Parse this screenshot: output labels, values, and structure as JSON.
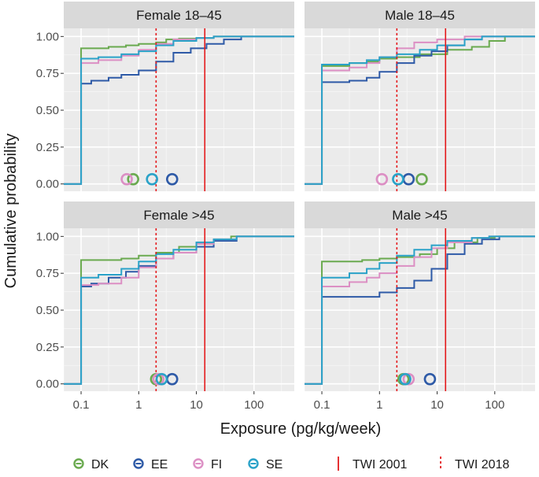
{
  "chart_data": {
    "type": "line",
    "title": "",
    "xlabel": "Exposure (pg/kg/week)",
    "ylabel": "Cumulative probability",
    "xscale": "log10",
    "xlim": [
      0.05,
      500
    ],
    "ylim": [
      0,
      1.0
    ],
    "x_ticks": [
      0.1,
      1,
      10,
      100
    ],
    "x_tick_labels": [
      "0.1",
      "1",
      "10",
      "100"
    ],
    "y_ticks": [
      0,
      0.25,
      0.5,
      0.75,
      1.0
    ],
    "y_tick_labels": [
      "0.00",
      "0.25",
      "0.50",
      "0.75",
      "1.00"
    ],
    "reference_lines": [
      {
        "name": "TWI 2001",
        "x": 14,
        "style": "solid",
        "color": "#e41a1c"
      },
      {
        "name": "TWI 2018",
        "x": 2,
        "style": "dotted",
        "color": "#e41a1c"
      }
    ],
    "series_colors": {
      "DK": "#6aaa4f",
      "EE": "#2e5aa7",
      "FI": "#dc8fc4",
      "SE": "#2aa2c8"
    },
    "legend": {
      "position": "bottom",
      "items": [
        {
          "label": "DK",
          "key": "DK"
        },
        {
          "label": "EE",
          "key": "EE"
        },
        {
          "label": "FI",
          "key": "FI"
        },
        {
          "label": "SE",
          "key": "SE"
        }
      ],
      "line_items": [
        {
          "label": "TWI 2001",
          "style": "solid"
        },
        {
          "label": "TWI 2018",
          "style": "dotted"
        }
      ]
    },
    "panels": [
      {
        "title": "Female 18–45",
        "series": [
          {
            "name": "DK",
            "points": [
              [
                0.04,
                0
              ],
              [
                0.095,
                0
              ],
              [
                0.1,
                0.92
              ],
              [
                0.3,
                0.93
              ],
              [
                0.6,
                0.94
              ],
              [
                1,
                0.95
              ],
              [
                2,
                0.96
              ],
              [
                3,
                0.98
              ],
              [
                5,
                0.985
              ],
              [
                10,
                0.99
              ],
              [
                20,
                1.0
              ],
              [
                500,
                1.0
              ]
            ]
          },
          {
            "name": "EE",
            "points": [
              [
                0.04,
                0
              ],
              [
                0.095,
                0
              ],
              [
                0.1,
                0.68
              ],
              [
                0.15,
                0.7
              ],
              [
                0.3,
                0.72
              ],
              [
                0.5,
                0.74
              ],
              [
                1,
                0.77
              ],
              [
                2,
                0.83
              ],
              [
                4,
                0.89
              ],
              [
                8,
                0.92
              ],
              [
                15,
                0.95
              ],
              [
                30,
                0.98
              ],
              [
                60,
                1.0
              ],
              [
                500,
                1.0
              ]
            ]
          },
          {
            "name": "FI",
            "points": [
              [
                0.04,
                0
              ],
              [
                0.095,
                0
              ],
              [
                0.1,
                0.82
              ],
              [
                0.2,
                0.84
              ],
              [
                0.5,
                0.87
              ],
              [
                1,
                0.91
              ],
              [
                2,
                0.95
              ],
              [
                4,
                0.98
              ],
              [
                10,
                0.99
              ],
              [
                20,
                1.0
              ],
              [
                500,
                1.0
              ]
            ]
          },
          {
            "name": "SE",
            "points": [
              [
                0.04,
                0
              ],
              [
                0.095,
                0
              ],
              [
                0.1,
                0.85
              ],
              [
                0.2,
                0.86
              ],
              [
                0.5,
                0.88
              ],
              [
                1,
                0.9
              ],
              [
                2,
                0.94
              ],
              [
                4,
                0.97
              ],
              [
                10,
                0.99
              ],
              [
                20,
                1.0
              ],
              [
                500,
                1.0
              ]
            ]
          }
        ],
        "medians": {
          "DK": 0.8,
          "EE": 3.8,
          "FI": 0.62,
          "SE": 1.7
        }
      },
      {
        "title": "Male 18–45",
        "series": [
          {
            "name": "DK",
            "points": [
              [
                0.04,
                0
              ],
              [
                0.095,
                0
              ],
              [
                0.1,
                0.8
              ],
              [
                0.3,
                0.82
              ],
              [
                0.6,
                0.83
              ],
              [
                1,
                0.85
              ],
              [
                2,
                0.86
              ],
              [
                5,
                0.88
              ],
              [
                15,
                0.91
              ],
              [
                40,
                0.93
              ],
              [
                80,
                0.97
              ],
              [
                150,
                1.0
              ],
              [
                500,
                1.0
              ]
            ]
          },
          {
            "name": "EE",
            "points": [
              [
                0.04,
                0
              ],
              [
                0.095,
                0
              ],
              [
                0.1,
                0.69
              ],
              [
                0.3,
                0.7
              ],
              [
                0.6,
                0.72
              ],
              [
                1,
                0.76
              ],
              [
                2,
                0.82
              ],
              [
                4,
                0.87
              ],
              [
                8,
                0.9
              ],
              [
                15,
                0.94
              ],
              [
                30,
                0.98
              ],
              [
                60,
                1.0
              ],
              [
                500,
                1.0
              ]
            ]
          },
          {
            "name": "FI",
            "points": [
              [
                0.04,
                0
              ],
              [
                0.095,
                0
              ],
              [
                0.1,
                0.77
              ],
              [
                0.3,
                0.79
              ],
              [
                0.6,
                0.82
              ],
              [
                1,
                0.86
              ],
              [
                2,
                0.92
              ],
              [
                4,
                0.96
              ],
              [
                10,
                0.98
              ],
              [
                30,
                1.0
              ],
              [
                500,
                1.0
              ]
            ]
          },
          {
            "name": "SE",
            "points": [
              [
                0.04,
                0
              ],
              [
                0.095,
                0
              ],
              [
                0.1,
                0.81
              ],
              [
                0.3,
                0.82
              ],
              [
                0.6,
                0.84
              ],
              [
                1,
                0.86
              ],
              [
                2,
                0.88
              ],
              [
                5,
                0.91
              ],
              [
                10,
                0.94
              ],
              [
                30,
                0.98
              ],
              [
                60,
                1.0
              ],
              [
                500,
                1.0
              ]
            ]
          }
        ],
        "medians": {
          "DK": 5.4,
          "EE": 3.2,
          "FI": 1.1,
          "SE": 2.1
        }
      },
      {
        "title": "Female >45",
        "series": [
          {
            "name": "DK",
            "points": [
              [
                0.04,
                0
              ],
              [
                0.095,
                0
              ],
              [
                0.1,
                0.84
              ],
              [
                0.5,
                0.85
              ],
              [
                1,
                0.87
              ],
              [
                2,
                0.89
              ],
              [
                5,
                0.93
              ],
              [
                10,
                0.95
              ],
              [
                20,
                0.98
              ],
              [
                40,
                1.0
              ],
              [
                500,
                1.0
              ]
            ]
          },
          {
            "name": "EE",
            "points": [
              [
                0.04,
                0
              ],
              [
                0.095,
                0
              ],
              [
                0.1,
                0.66
              ],
              [
                0.15,
                0.68
              ],
              [
                0.3,
                0.72
              ],
              [
                0.6,
                0.76
              ],
              [
                1,
                0.8
              ],
              [
                2,
                0.85
              ],
              [
                4,
                0.89
              ],
              [
                10,
                0.93
              ],
              [
                20,
                0.97
              ],
              [
                50,
                1.0
              ],
              [
                500,
                1.0
              ]
            ]
          },
          {
            "name": "FI",
            "points": [
              [
                0.04,
                0
              ],
              [
                0.095,
                0
              ],
              [
                0.1,
                0.67
              ],
              [
                0.2,
                0.68
              ],
              [
                0.5,
                0.72
              ],
              [
                1,
                0.79
              ],
              [
                2,
                0.85
              ],
              [
                4,
                0.89
              ],
              [
                10,
                0.95
              ],
              [
                20,
                0.98
              ],
              [
                50,
                1.0
              ],
              [
                500,
                1.0
              ]
            ]
          },
          {
            "name": "SE",
            "points": [
              [
                0.04,
                0
              ],
              [
                0.095,
                0
              ],
              [
                0.1,
                0.72
              ],
              [
                0.2,
                0.74
              ],
              [
                0.5,
                0.78
              ],
              [
                1,
                0.83
              ],
              [
                2,
                0.88
              ],
              [
                4,
                0.91
              ],
              [
                10,
                0.96
              ],
              [
                20,
                0.98
              ],
              [
                50,
                1.0
              ],
              [
                500,
                1.0
              ]
            ]
          }
        ],
        "medians": {
          "DK": 2.0,
          "EE": 3.8,
          "FI": 2.2,
          "SE": 2.5
        }
      },
      {
        "title": "Male >45",
        "series": [
          {
            "name": "DK",
            "points": [
              [
                0.04,
                0
              ],
              [
                0.095,
                0
              ],
              [
                0.1,
                0.83
              ],
              [
                0.5,
                0.84
              ],
              [
                1,
                0.85
              ],
              [
                2,
                0.86
              ],
              [
                5,
                0.88
              ],
              [
                10,
                0.92
              ],
              [
                20,
                0.96
              ],
              [
                50,
                0.99
              ],
              [
                100,
                1.0
              ],
              [
                500,
                1.0
              ]
            ]
          },
          {
            "name": "EE",
            "points": [
              [
                0.04,
                0
              ],
              [
                0.095,
                0
              ],
              [
                0.1,
                0.59
              ],
              [
                0.5,
                0.59
              ],
              [
                1,
                0.62
              ],
              [
                2,
                0.65
              ],
              [
                4,
                0.7
              ],
              [
                8,
                0.78
              ],
              [
                15,
                0.88
              ],
              [
                30,
                0.95
              ],
              [
                60,
                0.98
              ],
              [
                120,
                1.0
              ],
              [
                500,
                1.0
              ]
            ]
          },
          {
            "name": "FI",
            "points": [
              [
                0.04,
                0
              ],
              [
                0.095,
                0
              ],
              [
                0.1,
                0.66
              ],
              [
                0.3,
                0.69
              ],
              [
                0.6,
                0.72
              ],
              [
                1,
                0.75
              ],
              [
                2,
                0.8
              ],
              [
                4,
                0.86
              ],
              [
                8,
                0.92
              ],
              [
                15,
                0.96
              ],
              [
                40,
                0.99
              ],
              [
                80,
                1.0
              ],
              [
                500,
                1.0
              ]
            ]
          },
          {
            "name": "SE",
            "points": [
              [
                0.04,
                0
              ],
              [
                0.095,
                0
              ],
              [
                0.1,
                0.72
              ],
              [
                0.3,
                0.75
              ],
              [
                0.6,
                0.78
              ],
              [
                1,
                0.82
              ],
              [
                2,
                0.87
              ],
              [
                4,
                0.91
              ],
              [
                8,
                0.94
              ],
              [
                15,
                0.97
              ],
              [
                40,
                0.99
              ],
              [
                80,
                1.0
              ],
              [
                500,
                1.0
              ]
            ]
          }
        ],
        "medians": {
          "DK": 2.6,
          "EE": 7.5,
          "FI": 3.2,
          "SE": 2.8
        }
      }
    ]
  }
}
